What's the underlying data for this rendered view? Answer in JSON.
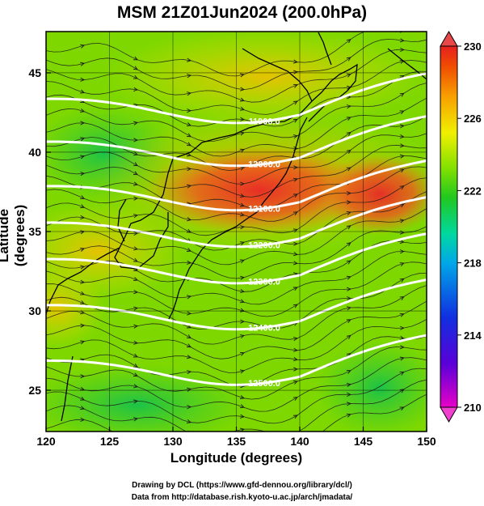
{
  "title": "MSM 21Z01Jun2024 (200.0hPa)",
  "xlabel": "Longitude (degrees)",
  "ylabel": "Latitude  (degrees)",
  "credits": [
    "Drawing by DCL (https://www.gfd-dennou.org/library/dcl/)",
    "Data from http://database.rish.kyoto-u.ac.jp/arch/jmadata/"
  ],
  "map": {
    "lon_range": [
      120,
      150
    ],
    "lat_range": [
      22.4,
      47.6
    ],
    "lon_ticks": [
      120,
      125,
      130,
      135,
      140,
      145,
      150
    ],
    "lat_ticks": [
      25,
      30,
      35,
      40,
      45
    ],
    "grid": true,
    "field": "temperature shading with wind streamlines and geopotential height contours",
    "colorbar": {
      "min": 210,
      "max": 230,
      "ticks": [
        210,
        214,
        218,
        222,
        226,
        230
      ],
      "colors": [
        "#e800c8",
        "#5a00d8",
        "#1030e0",
        "#00a8e8",
        "#00d8a0",
        "#20c820",
        "#80e000",
        "#f0f000",
        "#f8a000",
        "#f05000",
        "#e82020"
      ]
    },
    "contours": [
      {
        "label": "11900.0",
        "lat_at_120": 43.5
      },
      {
        "label": "12000.0",
        "lat_at_120": 40.8
      },
      {
        "label": "12100.0",
        "lat_at_120": 38.0
      },
      {
        "label": "12200.0",
        "lat_at_120": 35.7
      },
      {
        "label": "12300.0",
        "lat_at_120": 33.4
      },
      {
        "label": "12400.0",
        "lat_at_120": 30.5
      },
      {
        "label": "12500.0",
        "lat_at_120": 27.0
      }
    ]
  }
}
